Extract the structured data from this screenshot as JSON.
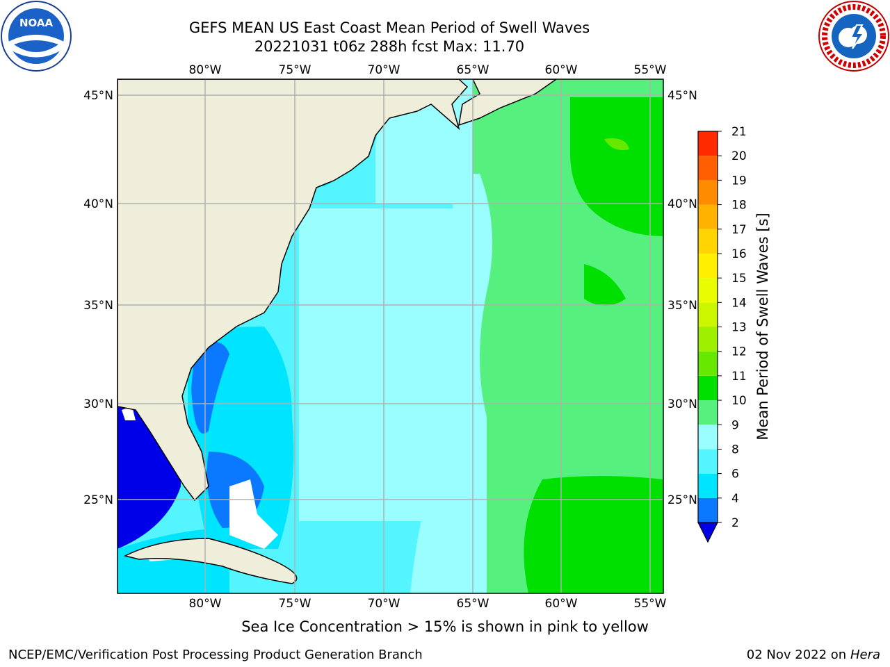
{
  "title": {
    "line1": "GEFS MEAN US East Coast Mean Period of Swell Waves",
    "line2": "20221031 t06z 288h fcst   Max: 11.70"
  },
  "logos": {
    "left": "noaa-logo",
    "right": "nws-logo",
    "left_text": "NOAA",
    "right_text": "NATIONAL WEATHER SERVICE"
  },
  "map": {
    "lon_labels": [
      "80°W",
      "75°W",
      "70°W",
      "65°W",
      "60°W",
      "55°W"
    ],
    "lat_labels": [
      "45°N",
      "40°N",
      "35°N",
      "30°N",
      "25°N"
    ],
    "land_color": "#efeedb",
    "grid_color": "#b0b0b0"
  },
  "colorbar": {
    "label": "Mean Period of Swell Waves [s]",
    "ticks": [
      "2",
      "4",
      "6",
      "8",
      "9",
      "10",
      "11",
      "12",
      "13",
      "14",
      "15",
      "16",
      "17",
      "18",
      "19",
      "20",
      "21"
    ],
    "colors": [
      "#0a78ff",
      "#00e5ff",
      "#55f5ff",
      "#9afeff",
      "#56f07f",
      "#00e000",
      "#66e800",
      "#9ef000",
      "#ccf500",
      "#eafc00",
      "#fff000",
      "#ffd400",
      "#ffb300",
      "#ff8c00",
      "#ff5f00",
      "#ff2a00"
    ],
    "under_color": "#0000e8"
  },
  "subtitle": "Sea Ice Concentration > 15% is shown in pink to yellow",
  "footer": {
    "left": "NCEP/EMC/Verification Post Processing Product Generation Branch",
    "date": "02 Nov 2022 on",
    "machine": "Hera"
  }
}
